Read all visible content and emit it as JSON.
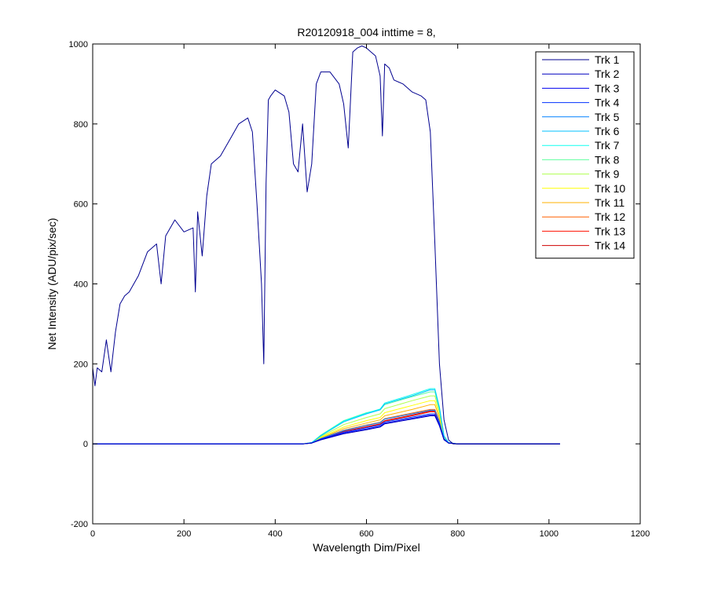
{
  "chart_data": {
    "type": "line",
    "title": "R20120918_004 inttime = 8,",
    "xlabel": "Wavelength Dim/Pixel",
    "ylabel": "Net Intensity (ADU/pix/sec)",
    "xlim": [
      0,
      1200
    ],
    "ylim": [
      -200,
      1000
    ],
    "xticks": [
      0,
      200,
      400,
      600,
      800,
      1000,
      1200
    ],
    "yticks": [
      -200,
      0,
      200,
      400,
      600,
      800,
      1000
    ],
    "grid": false,
    "legend_position": "top-right",
    "series": [
      {
        "name": "Trk 1",
        "color": "#00008f",
        "x": [
          0,
          5,
          10,
          20,
          30,
          40,
          50,
          60,
          70,
          80,
          100,
          120,
          140,
          150,
          160,
          180,
          200,
          220,
          225,
          230,
          240,
          250,
          260,
          280,
          300,
          320,
          340,
          350,
          360,
          370,
          375,
          380,
          385,
          390,
          400,
          420,
          430,
          440,
          450,
          460,
          470,
          480,
          490,
          500,
          520,
          540,
          550,
          560,
          570,
          580,
          590,
          600,
          610,
          620,
          630,
          635,
          640,
          650,
          660,
          680,
          700,
          720,
          730,
          740,
          750,
          760,
          770,
          780,
          790,
          800,
          850,
          900,
          1000,
          1024
        ],
        "y": [
          190,
          145,
          190,
          180,
          260,
          180,
          280,
          350,
          370,
          380,
          420,
          480,
          500,
          400,
          520,
          560,
          530,
          540,
          380,
          580,
          470,
          620,
          700,
          720,
          760,
          800,
          815,
          780,
          600,
          400,
          200,
          650,
          860,
          870,
          885,
          870,
          830,
          700,
          680,
          800,
          630,
          700,
          900,
          930,
          930,
          900,
          850,
          740,
          980,
          990,
          995,
          990,
          980,
          970,
          920,
          770,
          950,
          940,
          910,
          900,
          880,
          870,
          860,
          780,
          500,
          200,
          60,
          10,
          0,
          0,
          0,
          0,
          0,
          0
        ]
      },
      {
        "name": "Trk 2",
        "color": "#0000bf",
        "x": [
          0,
          460,
          480,
          500,
          550,
          600,
          630,
          640,
          700,
          740,
          750,
          760,
          770,
          780,
          800,
          1024
        ],
        "y": [
          0,
          0,
          2,
          10,
          25,
          35,
          42,
          50,
          62,
          70,
          70,
          45,
          10,
          2,
          0,
          0
        ]
      },
      {
        "name": "Trk 3",
        "color": "#0000ef",
        "x": [
          0,
          460,
          480,
          500,
          550,
          600,
          630,
          640,
          700,
          740,
          750,
          760,
          770,
          780,
          800,
          1024
        ],
        "y": [
          0,
          0,
          2,
          11,
          27,
          37,
          44,
          52,
          64,
          72,
          72,
          47,
          11,
          2,
          0,
          0
        ]
      },
      {
        "name": "Trk 4",
        "color": "#0030ff",
        "x": [
          0,
          460,
          480,
          500,
          550,
          600,
          630,
          640,
          700,
          740,
          750,
          760,
          770,
          780,
          800,
          1024
        ],
        "y": [
          0,
          0,
          2,
          12,
          29,
          40,
          47,
          55,
          67,
          75,
          75,
          50,
          12,
          2,
          0,
          0
        ]
      },
      {
        "name": "Trk 5",
        "color": "#0080ff",
        "x": [
          0,
          460,
          480,
          500,
          550,
          600,
          630,
          640,
          700,
          740,
          750,
          760,
          770,
          780,
          800,
          1024
        ],
        "y": [
          0,
          0,
          2,
          13,
          33,
          46,
          53,
          62,
          75,
          84,
          84,
          55,
          13,
          2,
          0,
          0
        ]
      },
      {
        "name": "Trk 6",
        "color": "#00c0ff",
        "x": [
          0,
          460,
          480,
          500,
          550,
          600,
          630,
          640,
          700,
          740,
          750,
          760,
          770,
          780,
          800,
          1024
        ],
        "y": [
          0,
          0,
          3,
          20,
          55,
          75,
          85,
          100,
          120,
          135,
          135,
          90,
          20,
          3,
          0,
          0
        ]
      },
      {
        "name": "Trk 7",
        "color": "#10ffef",
        "x": [
          0,
          460,
          480,
          500,
          550,
          600,
          630,
          640,
          700,
          740,
          750,
          760,
          770,
          780,
          800,
          1024
        ],
        "y": [
          0,
          0,
          3,
          21,
          57,
          77,
          87,
          102,
          123,
          138,
          138,
          92,
          20,
          3,
          0,
          0
        ]
      },
      {
        "name": "Trk 8",
        "color": "#60ff9f",
        "x": [
          0,
          460,
          480,
          500,
          550,
          600,
          630,
          640,
          700,
          740,
          750,
          760,
          770,
          780,
          800,
          1024
        ],
        "y": [
          0,
          0,
          3,
          22,
          58,
          78,
          85,
          98,
          118,
          130,
          130,
          85,
          18,
          3,
          0,
          0
        ]
      },
      {
        "name": "Trk 9",
        "color": "#b0ff4f",
        "x": [
          0,
          460,
          480,
          500,
          550,
          600,
          630,
          640,
          700,
          740,
          750,
          760,
          770,
          780,
          800,
          1024
        ],
        "y": [
          0,
          0,
          3,
          18,
          48,
          66,
          75,
          88,
          108,
          120,
          120,
          80,
          17,
          3,
          0,
          0
        ]
      },
      {
        "name": "Trk 10",
        "color": "#ffff00",
        "x": [
          0,
          460,
          480,
          500,
          550,
          600,
          630,
          640,
          700,
          740,
          750,
          760,
          770,
          780,
          800,
          1024
        ],
        "y": [
          0,
          0,
          3,
          16,
          42,
          58,
          66,
          78,
          96,
          108,
          108,
          72,
          15,
          3,
          0,
          0
        ]
      },
      {
        "name": "Trk 11",
        "color": "#ffb000",
        "x": [
          0,
          460,
          480,
          500,
          550,
          600,
          630,
          640,
          700,
          740,
          750,
          760,
          770,
          780,
          800,
          1024
        ],
        "y": [
          0,
          0,
          2,
          14,
          38,
          52,
          60,
          70,
          86,
          98,
          98,
          65,
          14,
          2,
          0,
          0
        ]
      },
      {
        "name": "Trk 12",
        "color": "#ff6000",
        "x": [
          0,
          460,
          480,
          500,
          550,
          600,
          630,
          640,
          700,
          740,
          750,
          760,
          770,
          780,
          800,
          1024
        ],
        "y": [
          0,
          0,
          2,
          13,
          34,
          47,
          54,
          63,
          77,
          86,
          86,
          57,
          12,
          2,
          0,
          0
        ]
      },
      {
        "name": "Trk 13",
        "color": "#ff1000",
        "x": [
          0,
          460,
          480,
          500,
          550,
          600,
          630,
          640,
          700,
          740,
          750,
          760,
          770,
          780,
          800,
          1024
        ],
        "y": [
          0,
          0,
          2,
          12,
          30,
          42,
          49,
          57,
          70,
          80,
          80,
          52,
          11,
          2,
          0,
          0
        ]
      },
      {
        "name": "Trk 14",
        "color": "#cf0000",
        "x": [
          0,
          460,
          480,
          500,
          550,
          600,
          630,
          640,
          700,
          740,
          750,
          760,
          770,
          780,
          800,
          1024
        ],
        "y": [
          0,
          0,
          2,
          12,
          31,
          43,
          50,
          58,
          72,
          82,
          82,
          53,
          11,
          2,
          0,
          0
        ]
      }
    ]
  }
}
